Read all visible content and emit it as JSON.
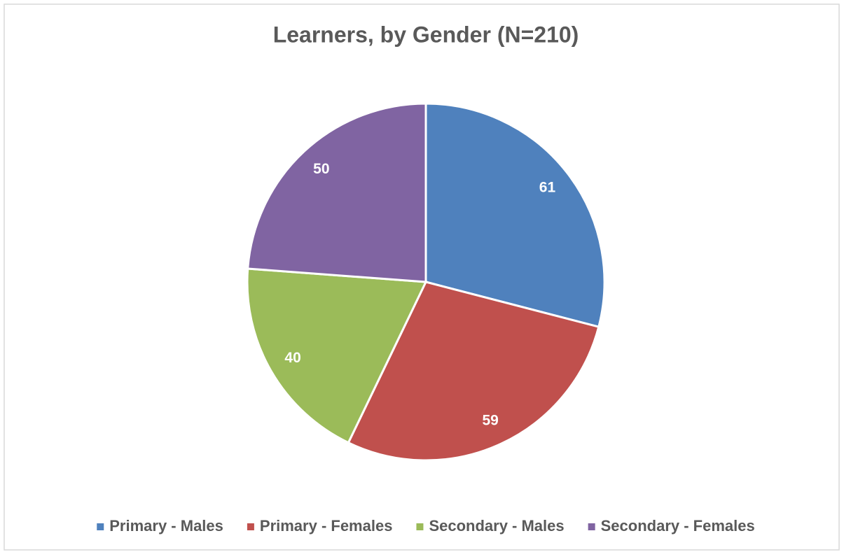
{
  "chart_data": {
    "type": "pie",
    "title": "Learners, by Gender (N=210)",
    "categories": [
      "Primary - Males",
      "Primary - Females",
      "Secondary - Males",
      "Secondary - Females"
    ],
    "values": [
      61,
      59,
      40,
      50
    ],
    "colors": [
      "#4f81bd",
      "#c0504d",
      "#9bbb59",
      "#8064a2"
    ],
    "legend": "bottom"
  }
}
